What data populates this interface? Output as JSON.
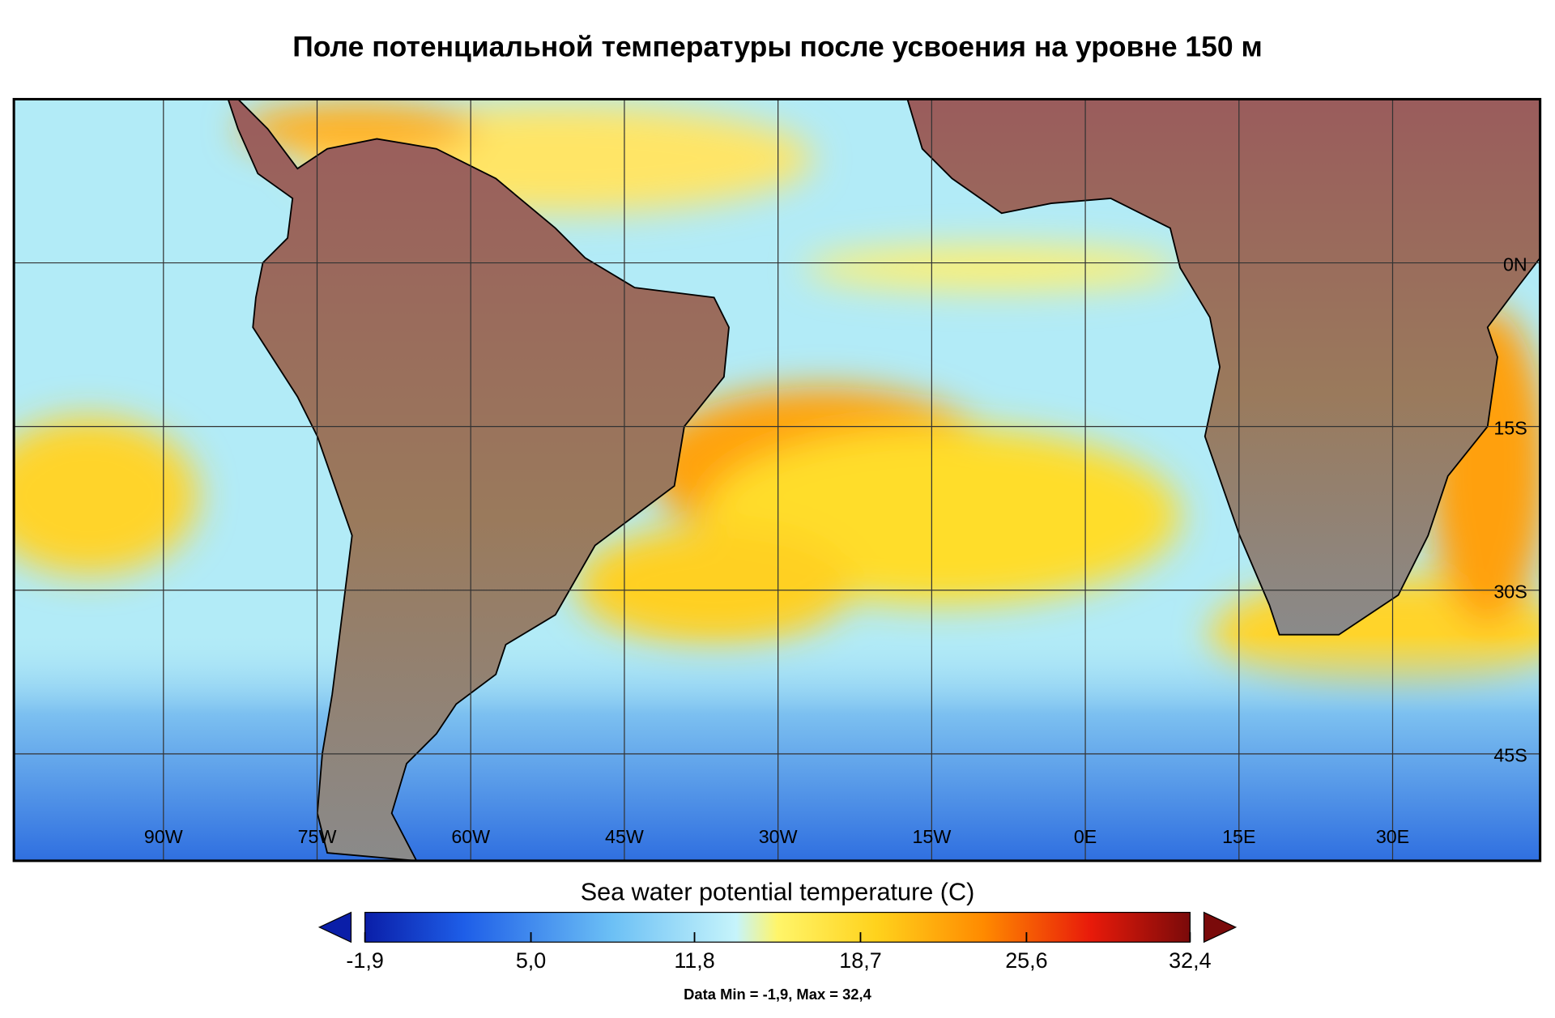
{
  "title": "Поле потенциальной температуры после усвоения на уровне 150 м",
  "map": {
    "lon_range": [
      -104.6,
      44.4
    ],
    "lat_range": [
      15,
      -54.8
    ],
    "lon_grid": [
      {
        "value": -90,
        "label": "90W"
      },
      {
        "value": -75,
        "label": "75W"
      },
      {
        "value": -60,
        "label": "60W"
      },
      {
        "value": -45,
        "label": "45W"
      },
      {
        "value": -30,
        "label": "30W"
      },
      {
        "value": -15,
        "label": "15W"
      },
      {
        "value": 0,
        "label": "0E"
      },
      {
        "value": 15,
        "label": "15E"
      },
      {
        "value": 30,
        "label": "30E"
      }
    ],
    "lat_grid": [
      {
        "value": 0,
        "label": "0N"
      },
      {
        "value": -15,
        "label": "15S"
      },
      {
        "value": -30,
        "label": "30S"
      },
      {
        "value": -45,
        "label": "45S"
      }
    ]
  },
  "colorbar": {
    "title": "Sea water potential temperature (C)",
    "ticks": [
      {
        "value": -1.9,
        "label": "-1,9"
      },
      {
        "value": 5.0,
        "label": "5,0"
      },
      {
        "value": 11.8,
        "label": "11,8"
      },
      {
        "value": 18.7,
        "label": "18,7"
      },
      {
        "value": 25.6,
        "label": "25,6"
      },
      {
        "value": 32.4,
        "label": "32,4"
      }
    ]
  },
  "footer": "Data Min = -1,9, Max = 32,4"
}
